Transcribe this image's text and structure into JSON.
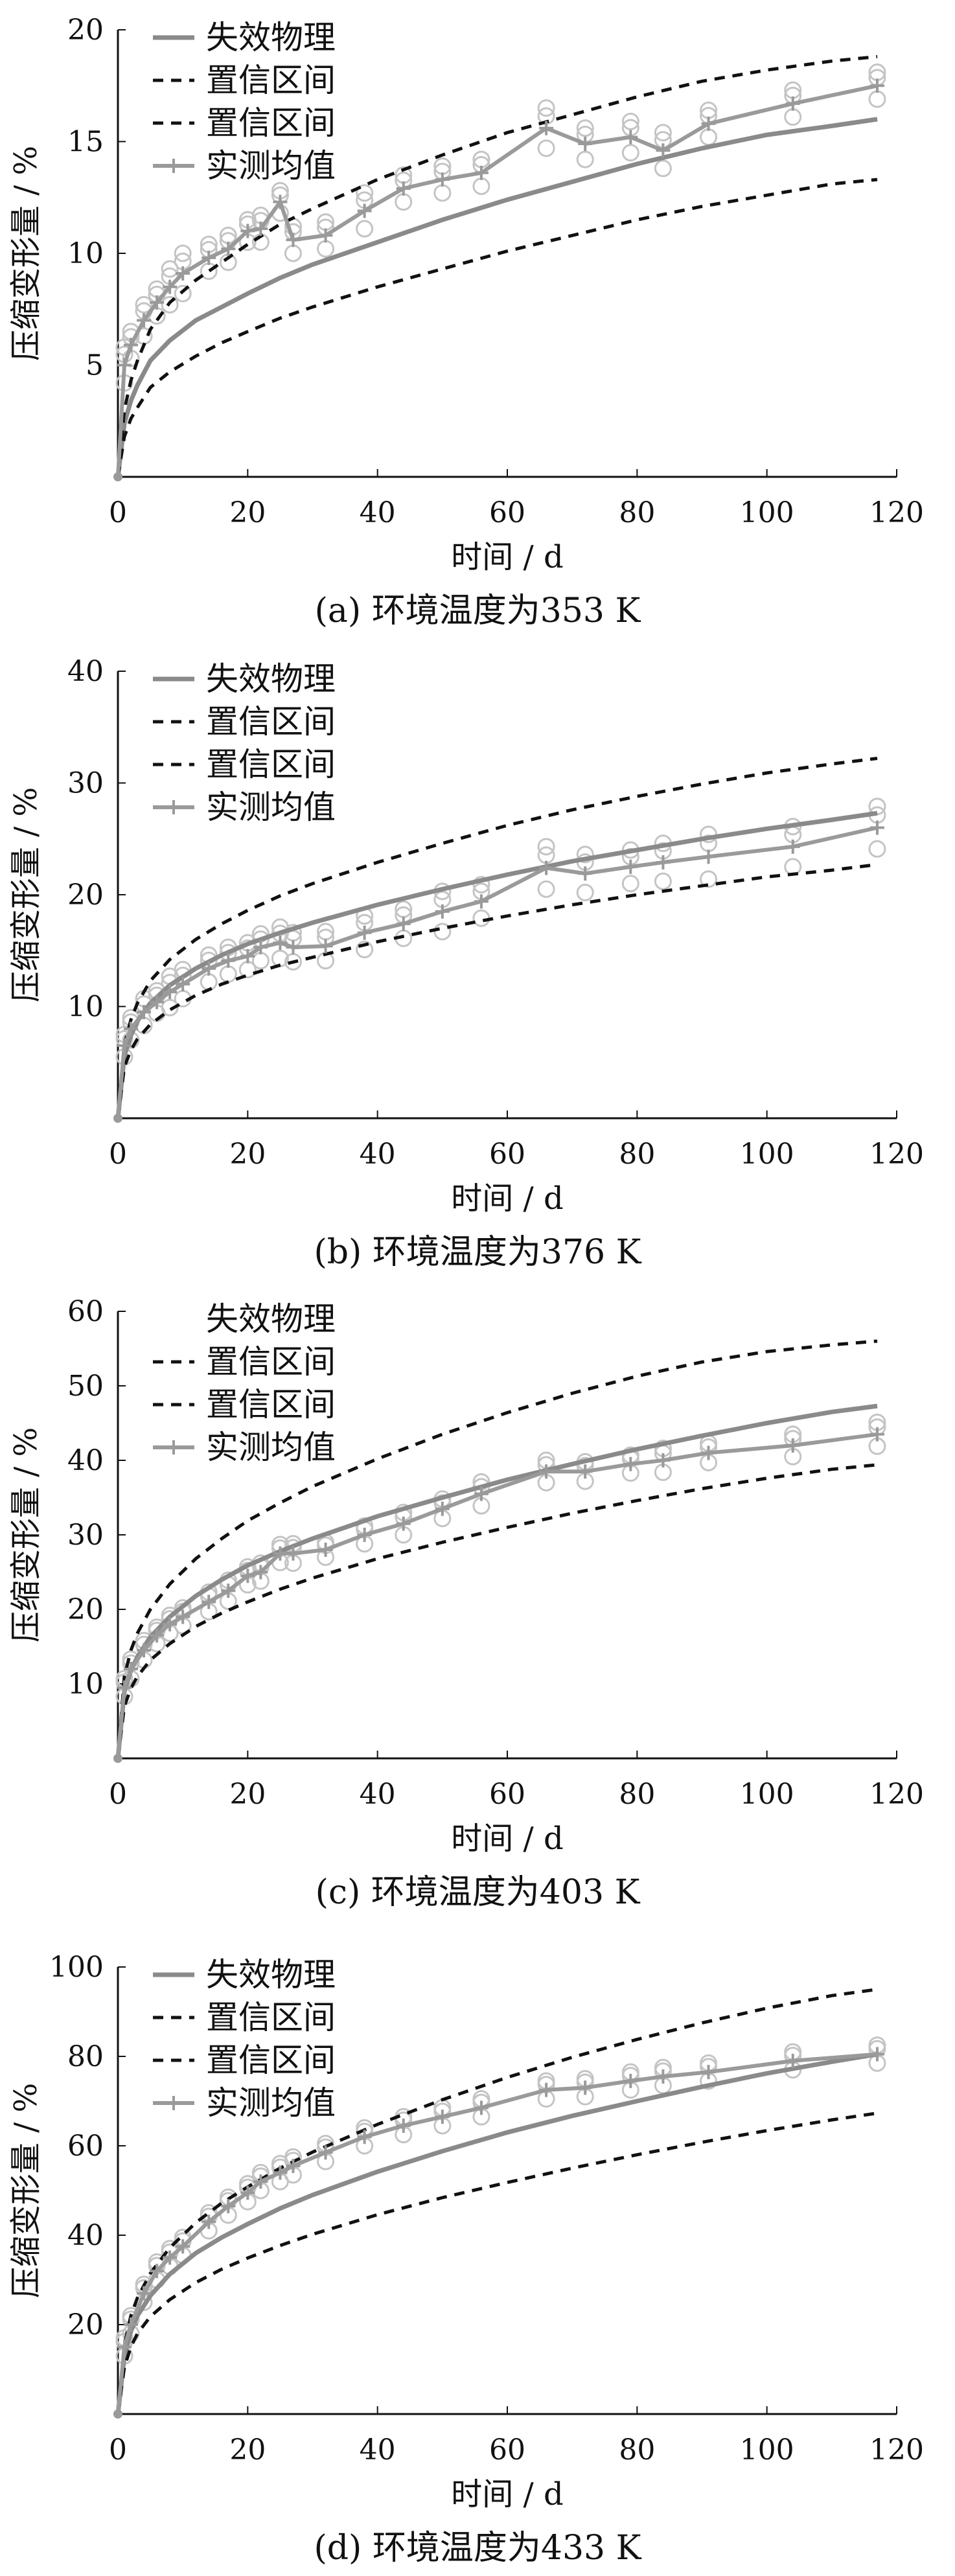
{
  "figure": {
    "colors": {
      "model": "#8a8a8a",
      "confidence": "#111111",
      "measured": "#9a9a9a",
      "scatter": "#c4c4c4",
      "axis": "#111111"
    }
  },
  "chart_data": [
    {
      "type": "line",
      "caption": "(a)  环境温度为353 K",
      "xlabel": "时间 / d",
      "ylabel": "压缩变形量 / %",
      "xlim": [
        0,
        120
      ],
      "ylim": [
        0,
        20
      ],
      "xticks": [
        0,
        20,
        40,
        60,
        80,
        100,
        120
      ],
      "yticks": [
        5,
        10,
        15,
        20
      ],
      "ytick_labels": [
        "5",
        "10",
        "15",
        "20"
      ],
      "legend": {
        "position": "top-left",
        "entries": [
          "失效物理",
          "置信区间",
          "置信区间",
          "实测均值"
        ]
      },
      "series": [
        {
          "name": "失效物理",
          "style": "solid",
          "x": [
            0,
            1,
            2,
            3,
            5,
            8,
            12,
            16,
            20,
            25,
            30,
            40,
            50,
            60,
            70,
            80,
            90,
            100,
            110,
            117
          ],
          "y": [
            0,
            2.4,
            3.4,
            4.1,
            5.2,
            6.1,
            7.0,
            7.6,
            8.2,
            8.9,
            9.5,
            10.5,
            11.5,
            12.4,
            13.2,
            14.0,
            14.7,
            15.3,
            15.7,
            16.0
          ]
        },
        {
          "name": "置信区间",
          "style": "dashed",
          "x": [
            0,
            1,
            2,
            3,
            5,
            8,
            12,
            16,
            20,
            25,
            30,
            40,
            50,
            60,
            70,
            80,
            90,
            100,
            110,
            117
          ],
          "y": [
            0,
            3.0,
            4.3,
            5.2,
            6.6,
            7.8,
            8.8,
            9.6,
            10.4,
            11.3,
            12.0,
            13.3,
            14.4,
            15.4,
            16.2,
            17.0,
            17.7,
            18.2,
            18.6,
            18.8
          ]
        },
        {
          "name": "置信区间",
          "style": "dashed",
          "x": [
            0,
            1,
            2,
            3,
            5,
            8,
            12,
            16,
            20,
            25,
            30,
            40,
            50,
            60,
            70,
            80,
            90,
            100,
            110,
            117
          ],
          "y": [
            0,
            1.8,
            2.6,
            3.1,
            4.0,
            4.7,
            5.4,
            6.0,
            6.5,
            7.1,
            7.6,
            8.5,
            9.3,
            10.1,
            10.8,
            11.5,
            12.1,
            12.6,
            13.1,
            13.3
          ]
        },
        {
          "name": "实测均值",
          "style": "solid-marker",
          "x": [
            0,
            1,
            2,
            4,
            6,
            8,
            10,
            14,
            17,
            20,
            22,
            25,
            27,
            32,
            38,
            44,
            50,
            56,
            66,
            72,
            79,
            84,
            91,
            104,
            117
          ],
          "y": [
            0,
            5.0,
            5.9,
            7.0,
            7.8,
            8.5,
            9.1,
            9.8,
            10.2,
            11.0,
            11.1,
            12.3,
            10.6,
            10.8,
            11.9,
            12.9,
            13.3,
            13.6,
            15.6,
            14.9,
            15.2,
            14.6,
            15.8,
            16.7,
            17.5
          ]
        }
      ],
      "scatter_x": [
        1,
        2,
        4,
        6,
        8,
        10,
        14,
        17,
        20,
        22,
        25,
        27,
        32,
        38,
        44,
        50,
        56,
        66,
        72,
        79,
        84,
        91,
        104,
        117
      ],
      "scatter_spread": [
        0.8,
        0.6,
        0.7,
        0.6,
        0.8,
        0.9,
        0.6,
        0.6,
        0.5,
        0.6,
        0.5,
        0.6,
        0.6,
        0.8,
        0.6,
        0.6,
        0.6,
        0.9,
        0.7,
        0.7,
        0.8,
        0.6,
        0.6,
        0.6
      ]
    },
    {
      "type": "line",
      "caption": "(b)  环境温度为376 K",
      "xlabel": "时间 / d",
      "ylabel": "压缩变形量 / %",
      "xlim": [
        0,
        120
      ],
      "ylim": [
        0,
        40
      ],
      "xticks": [
        0,
        20,
        40,
        60,
        80,
        100,
        120
      ],
      "yticks": [
        10,
        20,
        30,
        40
      ],
      "ytick_labels": [
        "10",
        "20",
        "30",
        "40"
      ],
      "legend": {
        "position": "top-left",
        "entries": [
          "失效物理",
          "置信区间",
          "置信区间",
          "实测均值"
        ]
      },
      "series": [
        {
          "name": "失效物理",
          "style": "solid",
          "x": [
            0,
            1,
            2,
            3,
            5,
            8,
            12,
            16,
            20,
            25,
            30,
            40,
            50,
            60,
            70,
            80,
            90,
            100,
            110,
            117
          ],
          "y": [
            0,
            5.6,
            7.4,
            8.7,
            10.3,
            11.9,
            13.4,
            14.6,
            15.6,
            16.6,
            17.5,
            19.1,
            20.5,
            21.8,
            23.0,
            24.0,
            25.0,
            25.9,
            26.7,
            27.3
          ]
        },
        {
          "name": "置信区间",
          "style": "dashed",
          "x": [
            0,
            1,
            2,
            3,
            5,
            8,
            12,
            16,
            20,
            25,
            30,
            40,
            50,
            60,
            70,
            80,
            90,
            100,
            110,
            117
          ],
          "y": [
            0,
            6.6,
            8.8,
            10.3,
            12.3,
            14.2,
            16.0,
            17.4,
            18.6,
            19.9,
            21.0,
            22.9,
            24.6,
            26.2,
            27.6,
            28.8,
            29.9,
            30.9,
            31.7,
            32.2
          ]
        },
        {
          "name": "置信区间",
          "style": "dashed",
          "x": [
            0,
            1,
            2,
            3,
            5,
            8,
            12,
            16,
            20,
            25,
            30,
            40,
            50,
            60,
            70,
            80,
            90,
            100,
            110,
            117
          ],
          "y": [
            0,
            4.6,
            6.1,
            7.1,
            8.4,
            9.7,
            11.0,
            12.0,
            12.8,
            13.7,
            14.4,
            15.8,
            17.0,
            18.1,
            19.1,
            20.0,
            20.8,
            21.6,
            22.2,
            22.7
          ]
        },
        {
          "name": "实测均值",
          "style": "solid-marker",
          "x": [
            0,
            1,
            2,
            4,
            6,
            8,
            10,
            14,
            17,
            20,
            22,
            25,
            27,
            32,
            38,
            44,
            50,
            56,
            66,
            72,
            79,
            84,
            91,
            104,
            117
          ],
          "y": [
            0,
            6.5,
            8.0,
            9.5,
            10.4,
            11.3,
            12.0,
            13.4,
            14.1,
            14.5,
            15.3,
            15.7,
            15.3,
            15.4,
            16.6,
            17.4,
            18.5,
            19.4,
            22.4,
            21.9,
            22.5,
            22.9,
            23.4,
            24.3,
            26.0
          ]
        }
      ],
      "scatter_x": [
        1,
        2,
        4,
        6,
        8,
        10,
        14,
        17,
        20,
        22,
        25,
        27,
        32,
        38,
        44,
        50,
        56,
        66,
        72,
        79,
        84,
        91,
        104,
        117
      ],
      "scatter_spread": [
        1.0,
        1.0,
        1.2,
        1.0,
        1.4,
        1.3,
        1.2,
        1.2,
        1.2,
        1.2,
        1.4,
        1.3,
        1.3,
        1.5,
        1.3,
        1.8,
        1.5,
        1.9,
        1.7,
        1.5,
        1.7,
        2.0,
        1.8,
        1.9
      ]
    },
    {
      "type": "line",
      "caption": "(c)  环境温度为403 K",
      "xlabel": "时间 / d",
      "ylabel": "压缩变形量 / %",
      "xlim": [
        0,
        120
      ],
      "ylim": [
        0,
        60
      ],
      "xticks": [
        0,
        20,
        40,
        60,
        80,
        100,
        120
      ],
      "yticks": [
        10,
        20,
        30,
        40,
        50,
        60
      ],
      "ytick_labels": [
        "10",
        "20",
        "30",
        "40",
        "50",
        "60"
      ],
      "legend": {
        "position": "top-left",
        "entries": [
          "失效物理",
          "置信区间",
          "置信区间",
          "实测均值"
        ]
      },
      "series": [
        {
          "name": "失效物理",
          "style": "solid",
          "x": [
            0,
            1,
            2,
            3,
            5,
            8,
            12,
            16,
            20,
            25,
            30,
            40,
            50,
            60,
            70,
            80,
            90,
            100,
            110,
            117
          ],
          "y": [
            0,
            9.0,
            11.8,
            13.6,
            16.3,
            19.0,
            21.8,
            24.0,
            25.9,
            27.8,
            29.5,
            32.5,
            35.0,
            37.4,
            39.5,
            41.5,
            43.3,
            45.0,
            46.5,
            47.3
          ]
        },
        {
          "name": "置信区间",
          "style": "dashed",
          "x": [
            0,
            1,
            2,
            3,
            5,
            8,
            12,
            16,
            20,
            25,
            30,
            40,
            50,
            60,
            70,
            80,
            90,
            100,
            110,
            117
          ],
          "y": [
            0,
            11.0,
            14.5,
            16.8,
            20.0,
            23.4,
            26.8,
            29.5,
            31.9,
            34.3,
            36.5,
            40.2,
            43.5,
            46.4,
            49.0,
            51.3,
            53.2,
            54.6,
            55.5,
            56.0
          ]
        },
        {
          "name": "置信区间",
          "style": "dashed",
          "x": [
            0,
            1,
            2,
            3,
            5,
            8,
            12,
            16,
            20,
            25,
            30,
            40,
            50,
            60,
            70,
            80,
            90,
            100,
            110,
            117
          ],
          "y": [
            0,
            7.0,
            9.4,
            11.0,
            13.2,
            15.4,
            17.7,
            19.5,
            21.0,
            22.7,
            24.2,
            26.8,
            29.0,
            31.0,
            32.9,
            34.6,
            36.2,
            37.6,
            38.8,
            39.4
          ]
        },
        {
          "name": "实测均值",
          "style": "solid-marker",
          "x": [
            0,
            1,
            2,
            4,
            6,
            8,
            10,
            14,
            17,
            20,
            22,
            25,
            27,
            32,
            38,
            44,
            50,
            56,
            66,
            72,
            79,
            84,
            91,
            104,
            117
          ],
          "y": [
            0,
            9.5,
            12.0,
            14.5,
            16.5,
            18.0,
            19.0,
            21.0,
            22.5,
            24.5,
            25.0,
            27.5,
            27.5,
            28.0,
            30.0,
            31.5,
            33.5,
            35.5,
            38.5,
            38.5,
            39.5,
            40.0,
            41.0,
            42.0,
            43.5
          ]
        }
      ],
      "scatter_x": [
        1,
        2,
        4,
        6,
        8,
        10,
        14,
        17,
        20,
        22,
        25,
        27,
        32,
        38,
        44,
        50,
        56,
        66,
        72,
        79,
        84,
        91,
        104,
        117
      ],
      "scatter_spread": [
        1.2,
        1.3,
        1.3,
        1.1,
        1.2,
        1.2,
        1.3,
        1.4,
        1.2,
        1.2,
        1.2,
        1.3,
        1.0,
        1.2,
        1.5,
        1.3,
        1.6,
        1.5,
        1.3,
        1.2,
        1.6,
        1.3,
        1.5,
        1.6
      ]
    },
    {
      "type": "line",
      "caption": "(d)  环境温度为433 K",
      "xlabel": "时间 / d",
      "ylabel": "压缩变形量 / %",
      "xlim": [
        0,
        120
      ],
      "ylim": [
        0,
        100
      ],
      "xticks": [
        0,
        20,
        40,
        60,
        80,
        100,
        120
      ],
      "yticks": [
        20,
        40,
        60,
        80,
        100
      ],
      "ytick_labels": [
        "20",
        "40",
        "60",
        "80",
        "100"
      ],
      "legend": {
        "position": "top-left",
        "entries": [
          "失效物理",
          "置信区间",
          "置信区间",
          "实测均值"
        ]
      },
      "series": [
        {
          "name": "失效物理",
          "style": "solid",
          "x": [
            0,
            1,
            2,
            3,
            5,
            8,
            12,
            16,
            20,
            25,
            30,
            40,
            50,
            60,
            70,
            80,
            90,
            100,
            110,
            117
          ],
          "y": [
            0,
            13.0,
            18.5,
            22.0,
            26.5,
            31.3,
            36.0,
            39.5,
            42.5,
            46.0,
            49.0,
            54.2,
            58.8,
            63.0,
            66.7,
            70.0,
            73.2,
            76.2,
            78.8,
            80.5
          ]
        },
        {
          "name": "置信区间",
          "style": "dashed",
          "x": [
            0,
            1,
            2,
            3,
            5,
            8,
            12,
            16,
            20,
            25,
            30,
            40,
            50,
            60,
            70,
            80,
            90,
            100,
            110,
            117
          ],
          "y": [
            0,
            15.5,
            22.0,
            26.0,
            31.5,
            37.2,
            42.8,
            47.2,
            50.8,
            55.0,
            58.6,
            64.8,
            70.3,
            75.3,
            79.8,
            83.8,
            87.5,
            90.8,
            93.6,
            95.0
          ]
        },
        {
          "name": "置信区间",
          "style": "dashed",
          "x": [
            0,
            1,
            2,
            3,
            5,
            8,
            12,
            16,
            20,
            25,
            30,
            40,
            50,
            60,
            70,
            80,
            90,
            100,
            110,
            117
          ],
          "y": [
            0,
            10.5,
            15.0,
            18.0,
            21.8,
            25.6,
            29.4,
            32.4,
            34.9,
            37.7,
            40.2,
            44.6,
            48.4,
            51.8,
            55.0,
            58.0,
            60.8,
            63.4,
            65.8,
            67.3
          ]
        },
        {
          "name": "实测均值",
          "style": "solid-marker",
          "x": [
            0,
            1,
            2,
            4,
            6,
            8,
            10,
            14,
            17,
            20,
            22,
            25,
            27,
            32,
            38,
            44,
            50,
            56,
            66,
            72,
            79,
            84,
            91,
            104,
            117
          ],
          "y": [
            0,
            15.0,
            20.0,
            27.0,
            32.0,
            35.0,
            37.5,
            43.0,
            46.5,
            49.5,
            52.0,
            54.0,
            55.5,
            58.5,
            62.0,
            64.5,
            66.5,
            68.5,
            72.5,
            73.0,
            74.5,
            75.5,
            76.5,
            79.0,
            80.5
          ]
        }
      ],
      "scatter_x": [
        1,
        2,
        4,
        6,
        8,
        10,
        14,
        17,
        20,
        22,
        25,
        27,
        32,
        38,
        44,
        50,
        56,
        66,
        72,
        79,
        84,
        91,
        104,
        117
      ],
      "scatter_spread": [
        2.0,
        2.0,
        2.0,
        2.0,
        2.0,
        2.0,
        2.0,
        2.0,
        2.0,
        2.0,
        2.0,
        2.0,
        2.0,
        2.0,
        2.0,
        2.0,
        2.0,
        2.0,
        2.0,
        2.0,
        2.0,
        2.0,
        2.0,
        2.0
      ]
    }
  ]
}
